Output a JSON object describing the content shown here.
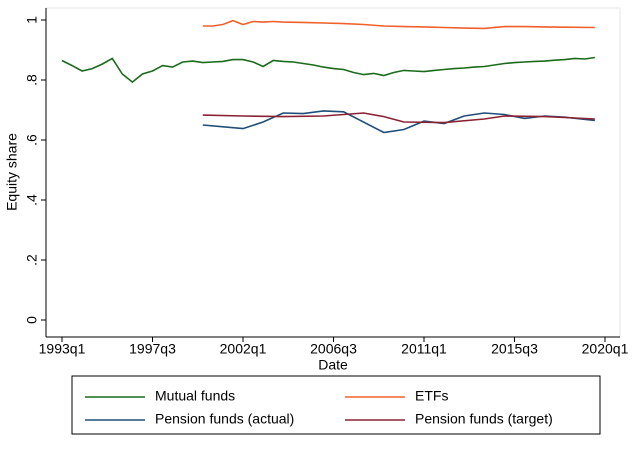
{
  "chart_data": {
    "type": "line",
    "x_label": "Date",
    "y_label": "Equity share",
    "xlim": [
      "1993q1",
      "2020q1"
    ],
    "xticks": [
      "1993q1",
      "1997q3",
      "2002q1",
      "2006q3",
      "2011q1",
      "2015q3",
      "2020q1"
    ],
    "ylim": [
      0,
      1
    ],
    "yticks": [
      0,
      {
        "value": 0.2,
        "label": ".2"
      },
      {
        "value": 0.4,
        "label": ".4"
      },
      {
        "value": 0.6,
        "label": ".6"
      },
      {
        "value": 0.8,
        "label": ".8"
      },
      1
    ],
    "grid": false,
    "legend_position": "bottom",
    "series": [
      {
        "name": "Mutual funds",
        "color": "#1a6b1a",
        "x": [
          "1993q1",
          "1993q3",
          "1994q1",
          "1994q3",
          "1995q1",
          "1995q3",
          "1996q1",
          "1996q3",
          "1997q1",
          "1997q3",
          "1998q1",
          "1998q3",
          "1999q1",
          "1999q3",
          "2000q1",
          "2000q3",
          "2001q1",
          "2001q3",
          "2002q1",
          "2002q3",
          "2003q1",
          "2003q3",
          "2004q1",
          "2004q3",
          "2005q1",
          "2005q3",
          "2006q1",
          "2006q3",
          "2007q1",
          "2007q3",
          "2008q1",
          "2008q3",
          "2009q1",
          "2009q3",
          "2010q1",
          "2010q3",
          "2011q1",
          "2011q3",
          "2012q1",
          "2012q3",
          "2013q1",
          "2013q3",
          "2014q1",
          "2014q3",
          "2015q1",
          "2015q3",
          "2016q1",
          "2016q3",
          "2017q1",
          "2017q3",
          "2018q1",
          "2018q3",
          "2019q1",
          "2019q3"
        ],
        "values": [
          0.865,
          0.848,
          0.83,
          0.838,
          0.853,
          0.872,
          0.82,
          0.793,
          0.82,
          0.83,
          0.848,
          0.843,
          0.86,
          0.863,
          0.858,
          0.86,
          0.862,
          0.868,
          0.868,
          0.86,
          0.845,
          0.865,
          0.862,
          0.86,
          0.855,
          0.85,
          0.843,
          0.838,
          0.835,
          0.825,
          0.818,
          0.822,
          0.815,
          0.825,
          0.832,
          0.83,
          0.828,
          0.832,
          0.835,
          0.838,
          0.84,
          0.843,
          0.845,
          0.85,
          0.855,
          0.858,
          0.86,
          0.862,
          0.863,
          0.866,
          0.868,
          0.872,
          0.87,
          0.875
        ]
      },
      {
        "name": "ETFs",
        "color": "#f0602a",
        "x": [
          "2000q1",
          "2000q3",
          "2001q1",
          "2001q3",
          "2002q1",
          "2002q3",
          "2003q1",
          "2003q3",
          "2004q1",
          "2005q1",
          "2006q1",
          "2007q1",
          "2008q1",
          "2009q1",
          "2010q1",
          "2011q1",
          "2012q1",
          "2013q1",
          "2014q1",
          "2015q1",
          "2016q1",
          "2017q1",
          "2018q1",
          "2019q3"
        ],
        "values": [
          0.98,
          0.98,
          0.985,
          0.998,
          0.985,
          0.995,
          0.993,
          0.995,
          0.993,
          0.992,
          0.99,
          0.988,
          0.985,
          0.98,
          0.978,
          0.977,
          0.975,
          0.973,
          0.972,
          0.978,
          0.978,
          0.977,
          0.976,
          0.975
        ]
      },
      {
        "name": "Pension funds (actual)",
        "color": "#1f4e79",
        "x": [
          "2000q1",
          "2002q1",
          "2003q1",
          "2004q1",
          "2005q1",
          "2006q1",
          "2007q1",
          "2009q1",
          "2010q1",
          "2011q1",
          "2012q1",
          "2013q1",
          "2014q1",
          "2015q1",
          "2016q1",
          "2017q1",
          "2018q1",
          "2019q3"
        ],
        "values": [
          0.65,
          0.638,
          0.66,
          0.69,
          0.688,
          0.697,
          0.694,
          0.625,
          0.635,
          0.663,
          0.655,
          0.68,
          0.69,
          0.685,
          0.672,
          0.68,
          0.676,
          0.665
        ]
      },
      {
        "name": "Pension funds (target)",
        "color": "#8b2232",
        "x": [
          "2000q1",
          "2002q1",
          "2004q1",
          "2006q1",
          "2008q1",
          "2009q1",
          "2010q1",
          "2012q1",
          "2014q1",
          "2015q1",
          "2017q1",
          "2018q1",
          "2019q3"
        ],
        "values": [
          0.683,
          0.68,
          0.678,
          0.68,
          0.69,
          0.678,
          0.66,
          0.658,
          0.67,
          0.68,
          0.678,
          0.675,
          0.67
        ]
      }
    ]
  }
}
